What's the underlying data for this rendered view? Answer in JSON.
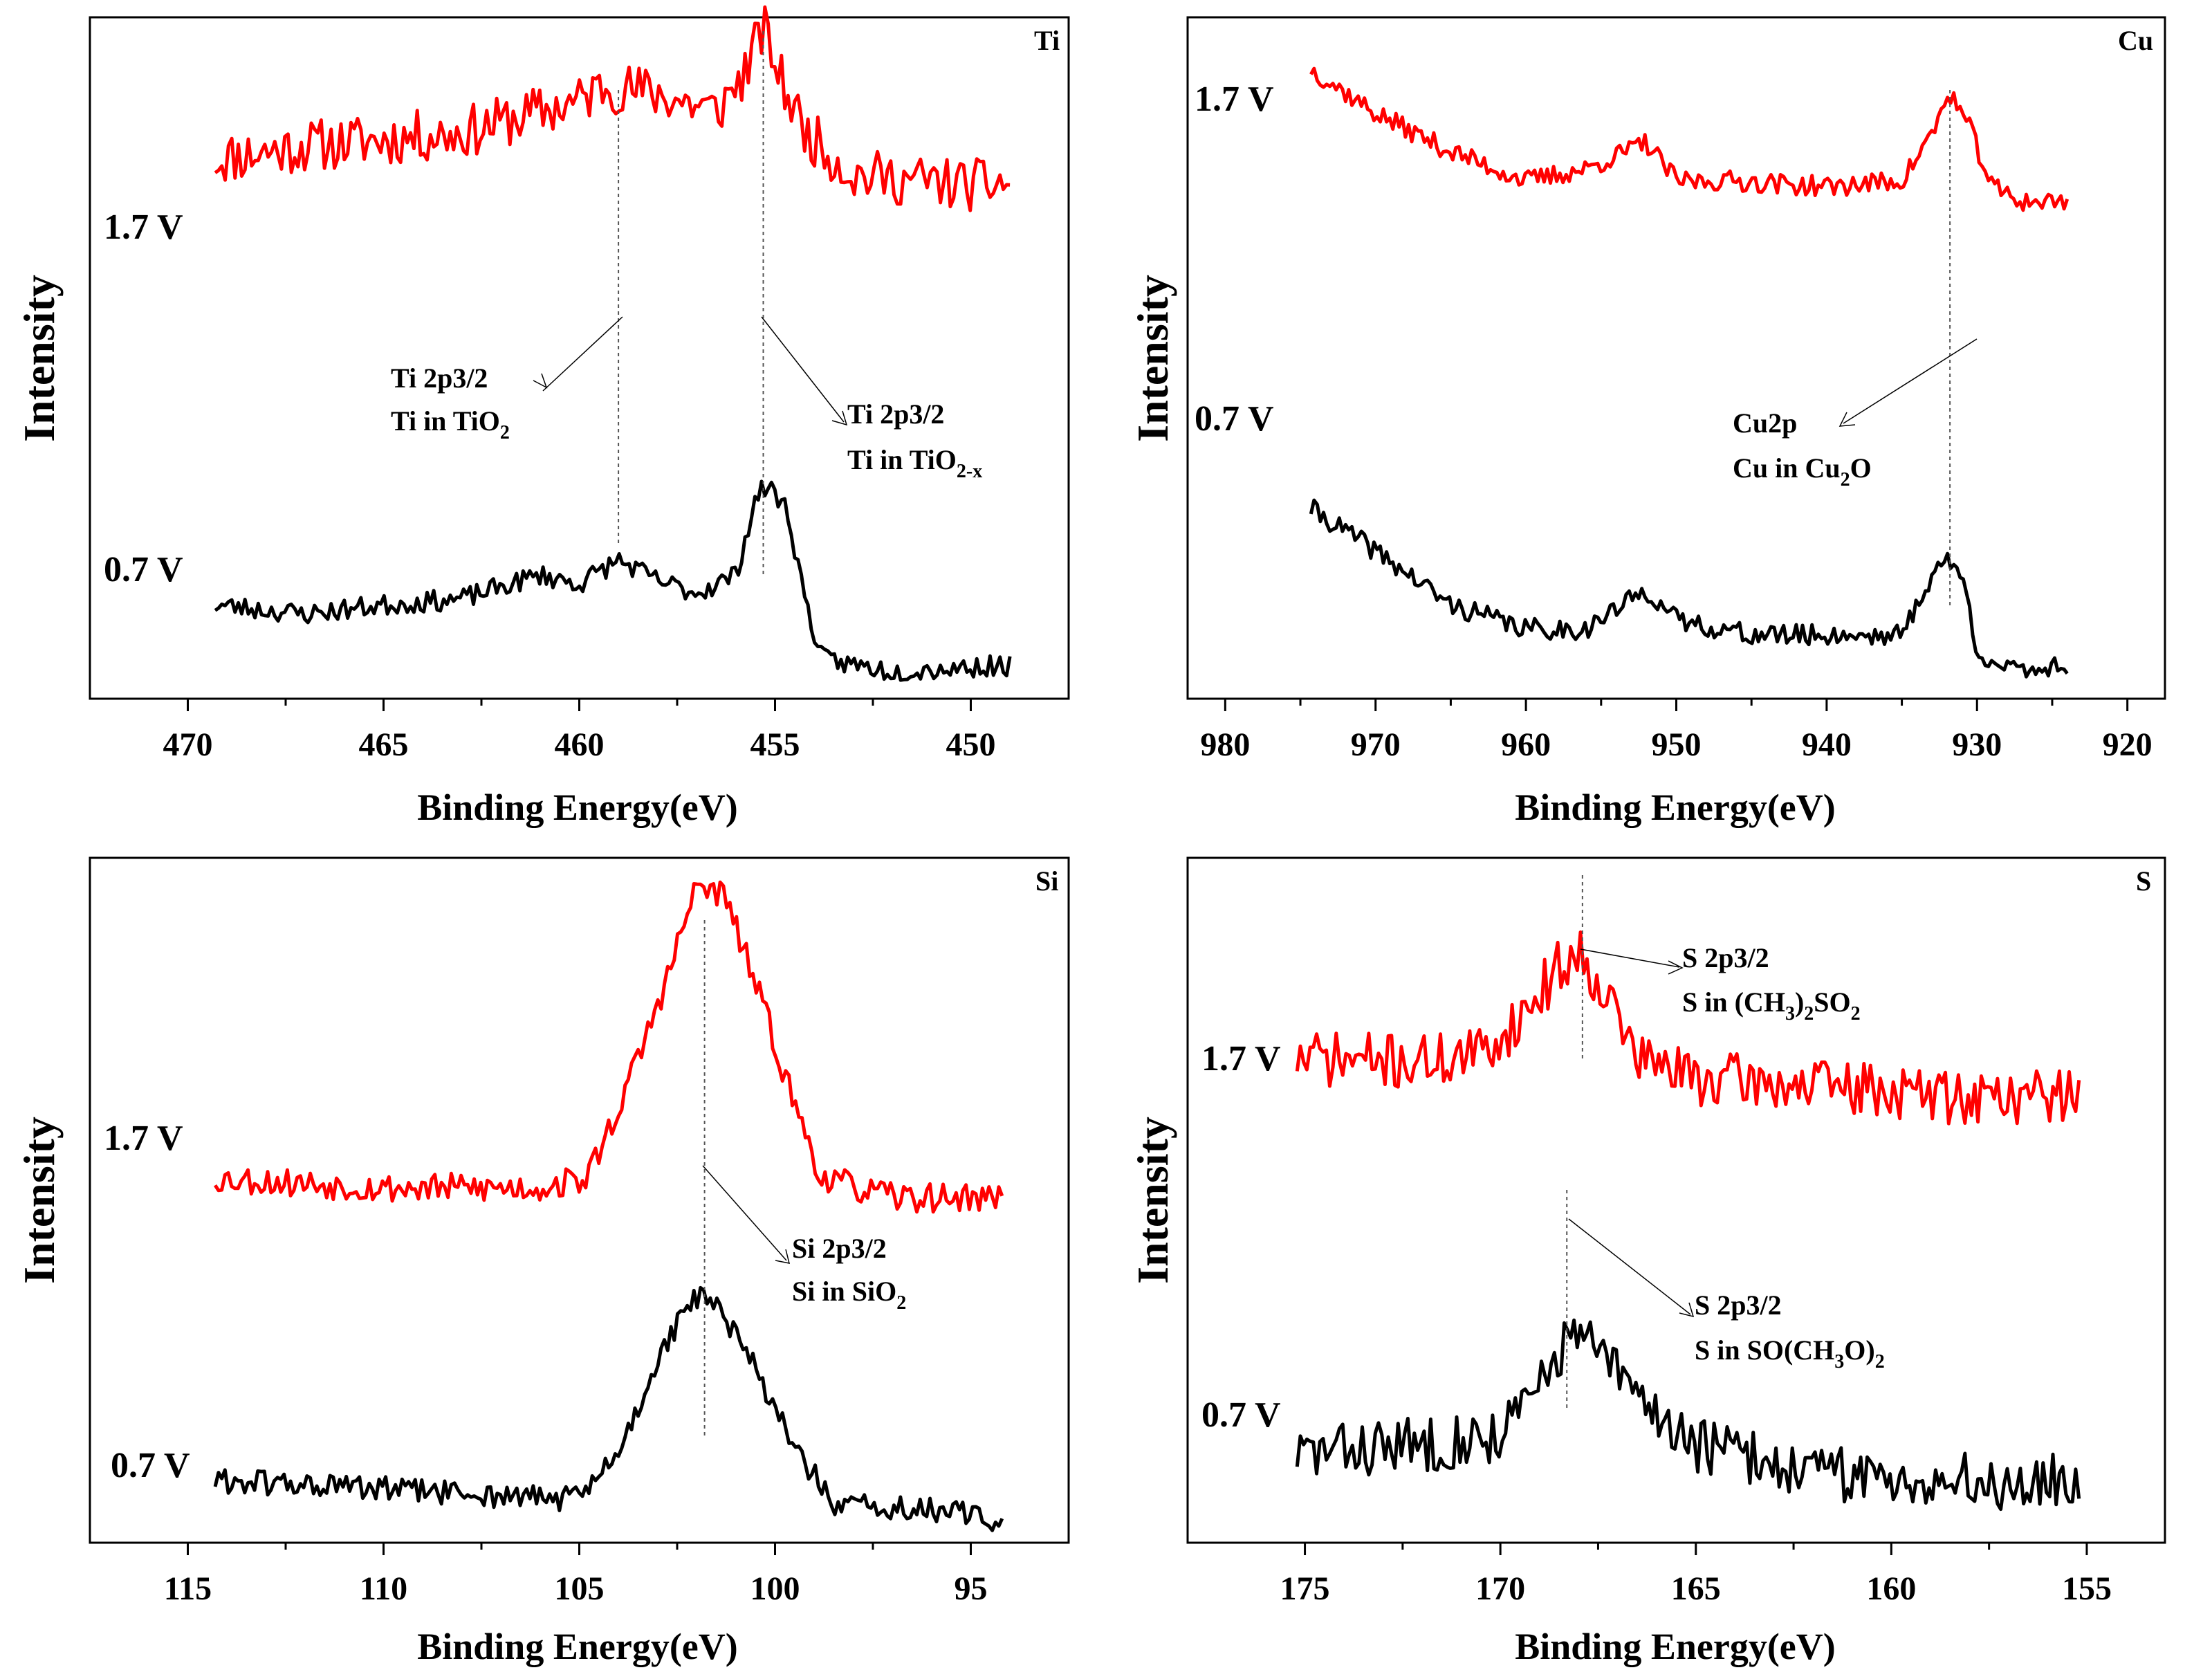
{
  "chart_data": [
    {
      "type": "line",
      "panel": "top-left",
      "element": "Ti",
      "xlabel": "Binding Energy(eV)",
      "ylabel": "Intensity",
      "xlim": [
        472.5,
        447.5
      ],
      "xticks": [
        470,
        465,
        460,
        455,
        450
      ],
      "x_range": [
        469.3,
        449.0
      ],
      "series": [
        {
          "name": "1.7 V",
          "color": "#ff0000",
          "noise": 0.1,
          "seed": 11,
          "points": [
            [
              469.3,
              0.5
            ],
            [
              467,
              0.55
            ],
            [
              463,
              0.6
            ],
            [
              460,
              0.72
            ],
            [
              459.4,
              0.78
            ],
            [
              458,
              0.75
            ],
            [
              456.5,
              0.68
            ],
            [
              455.8,
              0.82
            ],
            [
              455.3,
              1.0
            ],
            [
              454.8,
              0.78
            ],
            [
              454.2,
              0.6
            ],
            [
              453,
              0.44
            ],
            [
              450,
              0.4
            ],
            [
              449,
              0.41
            ]
          ]
        },
        {
          "name": "0.7 V",
          "color": "#000000",
          "noise": 0.035,
          "seed": 23,
          "points": [
            [
              469.3,
              0.3
            ],
            [
              467,
              0.27
            ],
            [
              465,
              0.3
            ],
            [
              463,
              0.32
            ],
            [
              461,
              0.4
            ],
            [
              460,
              0.37
            ],
            [
              459,
              0.45
            ],
            [
              458,
              0.38
            ],
            [
              457,
              0.34
            ],
            [
              456,
              0.4
            ],
            [
              455.5,
              0.65
            ],
            [
              455.2,
              0.7
            ],
            [
              454.7,
              0.62
            ],
            [
              454.2,
              0.3
            ],
            [
              453.8,
              0.12
            ],
            [
              452,
              0.08
            ],
            [
              449,
              0.1
            ]
          ]
        }
      ],
      "peaks": [
        459.0,
        455.3
      ],
      "annotations": [
        {
          "lines": [
            "Ti 2p3/2",
            "Ti in TiO",
            "2"
          ],
          "formula": [
            [
              "Ti in TiO",
              ""
            ],
            [
              "2",
              "sub"
            ]
          ]
        },
        {
          "lines": [
            "Ti 2p3/2",
            "Ti in TiO",
            "2-x"
          ],
          "formula": [
            [
              "Ti in TiO",
              ""
            ],
            [
              "2-x",
              "sub"
            ]
          ]
        }
      ],
      "label": "Ti"
    },
    {
      "type": "line",
      "panel": "top-right",
      "element": "Cu",
      "xlabel": "Binding Energy(eV)",
      "ylabel": "Intensity",
      "xlim": [
        982.5,
        917.5
      ],
      "xticks": [
        980,
        970,
        960,
        950,
        940,
        930,
        920
      ],
      "x_range": [
        974.3,
        924.0
      ],
      "series": [
        {
          "name": "1.7 V",
          "color": "#ff0000",
          "noise": 0.035,
          "seed": 37,
          "points": [
            [
              974.3,
              1.0
            ],
            [
              970,
              0.85
            ],
            [
              965,
              0.72
            ],
            [
              960,
              0.62
            ],
            [
              956,
              0.66
            ],
            [
              952,
              0.75
            ],
            [
              950,
              0.62
            ],
            [
              946,
              0.62
            ],
            [
              940,
              0.6
            ],
            [
              935,
              0.62
            ],
            [
              933,
              0.78
            ],
            [
              931.8,
              0.92
            ],
            [
              930.5,
              0.8
            ],
            [
              929,
              0.6
            ],
            [
              927,
              0.55
            ],
            [
              924,
              0.55
            ]
          ]
        },
        {
          "name": "0.7 V",
          "color": "#000000",
          "noise": 0.035,
          "seed": 41,
          "points": [
            [
              974.3,
              0.62
            ],
            [
              970,
              0.48
            ],
            [
              965,
              0.3
            ],
            [
              960,
              0.22
            ],
            [
              956,
              0.22
            ],
            [
              952,
              0.35
            ],
            [
              950,
              0.25
            ],
            [
              945,
              0.2
            ],
            [
              940,
              0.2
            ],
            [
              935,
              0.2
            ],
            [
              933,
              0.4
            ],
            [
              932,
              0.45
            ],
            [
              931,
              0.4
            ],
            [
              930,
              0.15
            ],
            [
              928,
              0.08
            ],
            [
              924,
              0.1
            ]
          ]
        }
      ],
      "peaks": [
        931.8
      ],
      "annotations": [
        {
          "lines": [
            "Cu2p",
            "Cu in Cu",
            "2",
            "O"
          ]
        }
      ],
      "label": "Cu"
    },
    {
      "type": "line",
      "panel": "bottom-left",
      "element": "Si",
      "xlabel": "Binding Energy(eV)",
      "ylabel": "Intensity",
      "xlim": [
        117.5,
        92.5
      ],
      "xticks": [
        115,
        110,
        105,
        100,
        95
      ],
      "x_range": [
        114.3,
        94.2
      ],
      "series": [
        {
          "name": "1.7 V",
          "color": "#ff0000",
          "noise": 0.03,
          "seed": 53,
          "points": [
            [
              114.3,
              0.4
            ],
            [
              110,
              0.38
            ],
            [
              106,
              0.38
            ],
            [
              104.8,
              0.4
            ],
            [
              103.8,
              0.58
            ],
            [
              102.8,
              0.8
            ],
            [
              102,
              1.0
            ],
            [
              101.3,
              0.98
            ],
            [
              100.5,
              0.8
            ],
            [
              99.5,
              0.55
            ],
            [
              98.8,
              0.4
            ],
            [
              97,
              0.36
            ],
            [
              94.2,
              0.36
            ]
          ]
        },
        {
          "name": "0.7 V",
          "color": "#000000",
          "noise": 0.03,
          "seed": 61,
          "points": [
            [
              114.3,
              0.12
            ],
            [
              110,
              0.1
            ],
            [
              106,
              0.08
            ],
            [
              105,
              0.08
            ],
            [
              104,
              0.18
            ],
            [
              103,
              0.4
            ],
            [
              102,
              0.55
            ],
            [
              101.5,
              0.52
            ],
            [
              100.5,
              0.38
            ],
            [
              99.5,
              0.2
            ],
            [
              98.5,
              0.06
            ],
            [
              96,
              0.05
            ],
            [
              94.2,
              0.03
            ]
          ]
        }
      ],
      "peaks": [
        101.8
      ],
      "annotations": [
        {
          "lines": [
            "Si 2p3/2",
            "Si in SiO",
            "2"
          ]
        }
      ],
      "label": "Si"
    },
    {
      "type": "line",
      "panel": "bottom-right",
      "element": "S",
      "xlabel": "Binding Energy(eV)",
      "ylabel": "Intensity",
      "xlim": [
        178,
        153
      ],
      "xticks": [
        175,
        170,
        165,
        160,
        155
      ],
      "x_range": [
        175.2,
        155.2
      ],
      "series": [
        {
          "name": "1.7 V",
          "color": "#ff0000",
          "noise": 0.07,
          "seed": 71,
          "points": [
            [
              175.2,
              0.65
            ],
            [
              172,
              0.64
            ],
            [
              170.5,
              0.66
            ],
            [
              169.5,
              0.75
            ],
            [
              168.5,
              0.88
            ],
            [
              168,
              0.92
            ],
            [
              167.3,
              0.82
            ],
            [
              166.5,
              0.65
            ],
            [
              165,
              0.6
            ],
            [
              162,
              0.58
            ],
            [
              158,
              0.55
            ],
            [
              155.2,
              0.56
            ]
          ]
        },
        {
          "name": "0.7 V",
          "color": "#000000",
          "noise": 0.06,
          "seed": 83,
          "points": [
            [
              175.2,
              0.16
            ],
            [
              172,
              0.18
            ],
            [
              170,
              0.2
            ],
            [
              169,
              0.3
            ],
            [
              168.2,
              0.42
            ],
            [
              167.3,
              0.36
            ],
            [
              166.5,
              0.28
            ],
            [
              165,
              0.18
            ],
            [
              162,
              0.12
            ],
            [
              158,
              0.1
            ],
            [
              155.2,
              0.1
            ]
          ]
        }
      ],
      "peaks": [
        167.9,
        168.3
      ],
      "annotations": [
        {
          "lines": [
            "S 2p3/2",
            "S in (CH",
            "3",
            ")",
            "2",
            "SO",
            "2"
          ]
        },
        {
          "lines": [
            "S 2p3/2",
            "S in SO(CH",
            "3",
            "O)",
            "2"
          ]
        }
      ],
      "label": "S"
    }
  ],
  "text": {
    "tl": {
      "label": "Ti",
      "s1": "1.7 V",
      "s2": "0.7 V",
      "xlabel": "Binding Energy(eV)",
      "ylabel": "Intensity",
      "a1l1": "Ti 2p3/2",
      "a1l2": "Ti in TiO",
      "a1sub": "2",
      "a2l1": "Ti 2p3/2",
      "a2l2": "Ti in TiO",
      "a2sub": "2-x"
    },
    "tr": {
      "label": "Cu",
      "s1": "1.7 V",
      "s2": "0.7 V",
      "xlabel": "Binding Energy(eV)",
      "ylabel": "Intensity",
      "a1l1": "Cu2p",
      "a1l2": "Cu in Cu",
      "a1sub": "2",
      "a1end": "O"
    },
    "bl": {
      "label": "Si",
      "s1": "1.7 V",
      "s2": "0.7 V",
      "xlabel": "Binding Energy(eV)",
      "ylabel": "Intensity",
      "a1l1": "Si 2p3/2",
      "a1l2": "Si in SiO",
      "a1sub": "2"
    },
    "br": {
      "label": "S",
      "s1": "1.7 V",
      "s2": "0.7 V",
      "xlabel": "Binding Energy(eV)",
      "ylabel": "Intensity",
      "a1l1": "S 2p3/2",
      "a1l2": "S in (CH",
      "a1s1": "3",
      "a1m": ")",
      "a1s2": "2",
      "a1m2": "SO",
      "a1s3": "2",
      "a2l1": "S 2p3/2",
      "a2l2": "S in SO(CH",
      "a2s1": "3",
      "a2m": "O)",
      "a2s2": "2"
    }
  }
}
